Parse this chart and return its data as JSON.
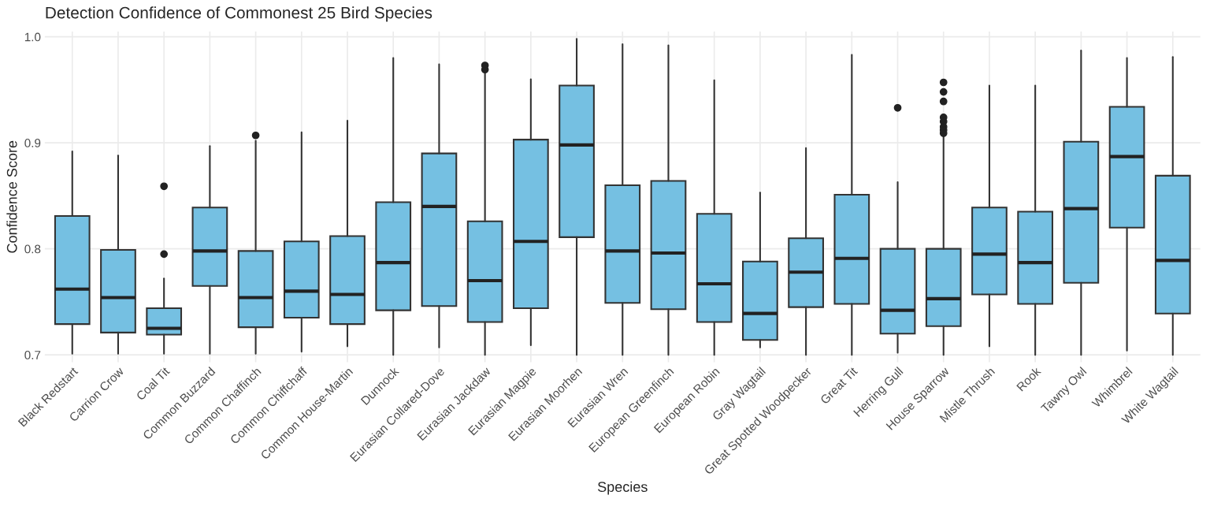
{
  "chart_data": {
    "type": "box",
    "title": "Detection Confidence of Commonest 25 Bird Species",
    "xlabel": "Species",
    "ylabel": "Confidence Score",
    "categories": [
      "Black Redstart",
      "Carrion Crow",
      "Coal Tit",
      "Common Buzzard",
      "Common Chaffinch",
      "Common Chiffchaff",
      "Common House-Martin",
      "Dunnock",
      "Eurasian Collared-Dove",
      "Eurasian Jackdaw",
      "Eurasian Magpie",
      "Eurasian Moorhen",
      "Eurasian Wren",
      "European Greenfinch",
      "European Robin",
      "Gray Wagtail",
      "Great Spotted Woodpecker",
      "Great Tit",
      "Herring Gull",
      "House Sparrow",
      "Mistle Thrush",
      "Rook",
      "Tawny Owl",
      "Whimbrel",
      "White Wagtail"
    ],
    "color": "#75c0e2",
    "boxes": [
      {
        "low": 0.701,
        "q1": 0.729,
        "median": 0.762,
        "q3": 0.831,
        "high": 0.892
      },
      {
        "low": 0.701,
        "q1": 0.721,
        "median": 0.754,
        "q3": 0.799,
        "high": 0.888
      },
      {
        "low": 0.701,
        "q1": 0.719,
        "median": 0.725,
        "q3": 0.744,
        "high": 0.772,
        "outliers": [
          0.859,
          0.795
        ]
      },
      {
        "low": 0.701,
        "q1": 0.765,
        "median": 0.798,
        "q3": 0.839,
        "high": 0.897
      },
      {
        "low": 0.701,
        "q1": 0.726,
        "median": 0.754,
        "q3": 0.798,
        "high": 0.902,
        "outliers": [
          0.907
        ]
      },
      {
        "low": 0.703,
        "q1": 0.735,
        "median": 0.76,
        "q3": 0.807,
        "high": 0.91
      },
      {
        "low": 0.708,
        "q1": 0.729,
        "median": 0.757,
        "q3": 0.812,
        "high": 0.921
      },
      {
        "low": 0.7,
        "q1": 0.742,
        "median": 0.787,
        "q3": 0.844,
        "high": 0.98
      },
      {
        "low": 0.707,
        "q1": 0.746,
        "median": 0.84,
        "q3": 0.89,
        "high": 0.974
      },
      {
        "low": 0.7,
        "q1": 0.731,
        "median": 0.77,
        "q3": 0.826,
        "high": 0.967,
        "outliers": [
          0.973,
          0.969
        ]
      },
      {
        "low": 0.709,
        "q1": 0.744,
        "median": 0.807,
        "q3": 0.903,
        "high": 0.96
      },
      {
        "low": 0.7,
        "q1": 0.811,
        "median": 0.898,
        "q3": 0.954,
        "high": 0.998
      },
      {
        "low": 0.7,
        "q1": 0.749,
        "median": 0.798,
        "q3": 0.86,
        "high": 0.993
      },
      {
        "low": 0.7,
        "q1": 0.743,
        "median": 0.796,
        "q3": 0.864,
        "high": 0.992
      },
      {
        "low": 0.7,
        "q1": 0.731,
        "median": 0.767,
        "q3": 0.833,
        "high": 0.959
      },
      {
        "low": 0.707,
        "q1": 0.714,
        "median": 0.739,
        "q3": 0.788,
        "high": 0.853
      },
      {
        "low": 0.7,
        "q1": 0.745,
        "median": 0.778,
        "q3": 0.81,
        "high": 0.895
      },
      {
        "low": 0.7,
        "q1": 0.748,
        "median": 0.791,
        "q3": 0.851,
        "high": 0.983
      },
      {
        "low": 0.702,
        "q1": 0.72,
        "median": 0.742,
        "q3": 0.8,
        "high": 0.863,
        "outliers": [
          0.933
        ]
      },
      {
        "low": 0.7,
        "q1": 0.727,
        "median": 0.753,
        "q3": 0.8,
        "high": 0.907,
        "outliers": [
          0.957,
          0.948,
          0.939,
          0.924,
          0.92,
          0.915,
          0.912,
          0.909
        ]
      },
      {
        "low": 0.708,
        "q1": 0.757,
        "median": 0.795,
        "q3": 0.839,
        "high": 0.954
      },
      {
        "low": 0.7,
        "q1": 0.748,
        "median": 0.787,
        "q3": 0.835,
        "high": 0.954
      },
      {
        "low": 0.7,
        "q1": 0.768,
        "median": 0.838,
        "q3": 0.901,
        "high": 0.987
      },
      {
        "low": 0.704,
        "q1": 0.82,
        "median": 0.887,
        "q3": 0.934,
        "high": 0.98
      },
      {
        "low": 0.7,
        "q1": 0.739,
        "median": 0.789,
        "q3": 0.869,
        "high": 0.981
      }
    ],
    "ylim": [
      0.693,
      1.005
    ],
    "yticks": [
      0.7,
      0.8,
      0.9,
      {
        "value": 1,
        "label": "1.0"
      }
    ],
    "grid": true,
    "legend": false
  }
}
